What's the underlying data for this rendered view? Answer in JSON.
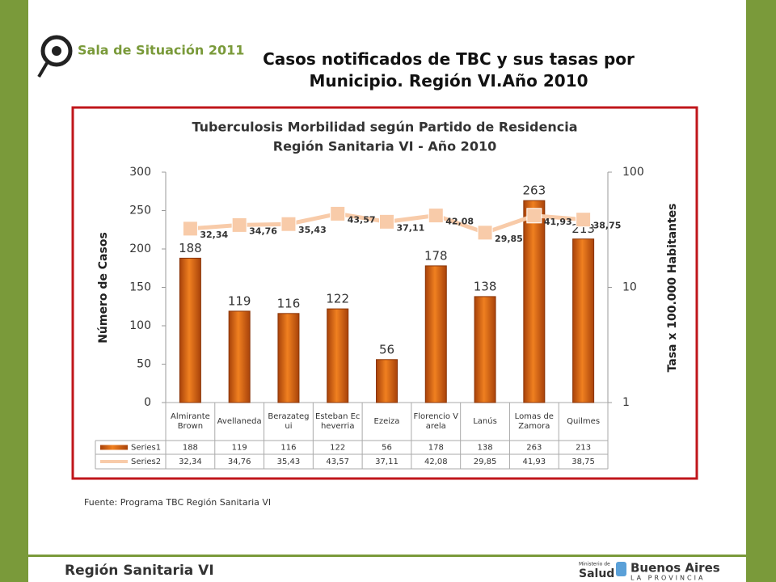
{
  "header": {
    "logo_text": "Sala de Situación 2011",
    "title": "Casos notificados de TBC y sus tasas por Municipio. Región VI.Año 2010"
  },
  "chart_data": {
    "type": "bar_line",
    "title": "Tuberculosis Morbilidad según Partido de Residencia",
    "subtitle": "Región Sanitaria VI - Año 2010",
    "ylabel": "Número de Casos",
    "y2label": "Tasa x 100.000 Habitantes",
    "categories": [
      "Almirante Brown",
      "Avellaneda",
      "Berazategui",
      "Esteban Echeverria",
      "Ezeiza",
      "Florencio Varela",
      "Lanús",
      "Lomas de Zamora",
      "Quilmes"
    ],
    "series": [
      {
        "name": "Series1",
        "type": "bar",
        "color": "#e2680e",
        "values": [
          188,
          119,
          116,
          122,
          56,
          178,
          138,
          263,
          213
        ]
      },
      {
        "name": "Series2",
        "type": "line",
        "axis": "y2",
        "color": "#f8cba9",
        "values": [
          32.34,
          34.76,
          35.43,
          43.57,
          37.11,
          42.08,
          29.85,
          41.93,
          38.75
        ],
        "value_labels": [
          "32,34",
          "34,76",
          "35,43",
          "43,57",
          "37,11",
          "42,08",
          "29,85",
          "41,93",
          "38,75"
        ]
      }
    ],
    "ylim": [
      0,
      300
    ],
    "yticks": [
      0,
      50,
      100,
      150,
      200,
      250,
      300
    ],
    "y2lim": [
      1,
      100
    ],
    "y2ticks": [
      1,
      10,
      100
    ],
    "y2log": true,
    "grid": false,
    "data_table": true
  },
  "source": "Fuente: Programa TBC Región Sanitaria VI",
  "footer": {
    "left": "Región Sanitaria VI",
    "ministry_small": "Ministerio de",
    "ministry": "Salud",
    "province": "Buenos Aires",
    "province_sub": "LA PROVINCIA"
  }
}
